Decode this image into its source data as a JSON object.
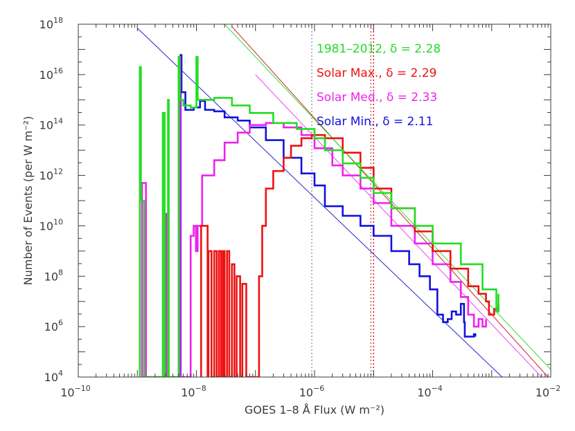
{
  "chart_data": {
    "type": "line",
    "xlabel": "GOES 1–8 Å Flux (W m⁻²)",
    "ylabel": "Number of Events (per W m⁻²)",
    "xscale": "log",
    "yscale": "log",
    "xlim": [
      1e-10,
      0.01
    ],
    "ylim": [
      10000.0,
      1e+18
    ],
    "x_ticks": [
      {
        "value": 1e-10,
        "base": "10",
        "exp": "−10"
      },
      {
        "value": 1e-08,
        "base": "10",
        "exp": "−8"
      },
      {
        "value": 1e-06,
        "base": "10",
        "exp": "−6"
      },
      {
        "value": 0.0001,
        "base": "10",
        "exp": "−4"
      },
      {
        "value": 0.01,
        "base": "10",
        "exp": "−2"
      }
    ],
    "y_ticks": [
      {
        "value": 10000.0,
        "base": "10",
        "exp": "4"
      },
      {
        "value": 1000000.0,
        "base": "10",
        "exp": "6"
      },
      {
        "value": 100000000.0,
        "base": "10",
        "exp": "8"
      },
      {
        "value": 10000000000.0,
        "base": "10",
        "exp": "10"
      },
      {
        "value": 1000000000000.0,
        "base": "10",
        "exp": "12"
      },
      {
        "value": 100000000000000.0,
        "base": "10",
        "exp": "14"
      },
      {
        "value": 1e+16,
        "base": "10",
        "exp": "16"
      },
      {
        "value": 1e+18,
        "base": "10",
        "exp": "18"
      }
    ],
    "legend_placement": "top-right",
    "legend": [
      {
        "text": "1981–2012, δ = 2.28",
        "color": "#22dd22"
      },
      {
        "text": "Solar Max., δ = 2.29",
        "color": "#ee1111"
      },
      {
        "text": "Solar Med., δ = 2.33",
        "color": "#ee22ee"
      },
      {
        "text": "Solar Min., δ = 2.11",
        "color": "#1111dd"
      }
    ],
    "vlines": [
      {
        "x": 9e-07,
        "color": "#9999aa"
      },
      {
        "x": 9e-06,
        "color": "#bb6666"
      },
      {
        "x": 1e-05,
        "color": "#ee1111"
      }
    ],
    "series": [
      {
        "color": "#1111dd",
        "points": [
          [
            5.4e-09,
            10000.0
          ],
          [
            5.4e-09,
            6e+16
          ],
          [
            5.6e-09,
            2000000000000000.0
          ],
          [
            6.5e-09,
            400000000000000.0
          ],
          [
            9e-09,
            500000000000000.0
          ],
          [
            1.15e-08,
            900000000000000.0
          ],
          [
            1.4e-08,
            400000000000000.0
          ],
          [
            2e-08,
            350000000000000.0
          ],
          [
            3e-08,
            200000000000000.0
          ],
          [
            5e-08,
            150000000000000.0
          ],
          [
            8e-08,
            80000000000000.0
          ],
          [
            1.5e-07,
            25000000000000.0
          ],
          [
            3e-07,
            5000000000000.0
          ],
          [
            6e-07,
            1200000000000.0
          ],
          [
            1e-06,
            400000000000.0
          ],
          [
            1.5e-06,
            60000000000.0
          ],
          [
            3e-06,
            25000000000.0
          ],
          [
            6e-06,
            10000000000.0
          ],
          [
            1e-05,
            4000000000.0
          ],
          [
            2e-05,
            1000000000.0
          ],
          [
            4e-05,
            300000000.0
          ],
          [
            6e-05,
            100000000.0
          ],
          [
            9e-05,
            30000000.0
          ],
          [
            0.00012,
            3000000.0
          ],
          [
            0.00015,
            1500000.0
          ],
          [
            0.00018,
            2000000.0
          ],
          [
            0.00021,
            4000000.0
          ],
          [
            0.00025,
            3000000.0
          ],
          [
            0.0003,
            8000000.0
          ],
          [
            0.00034,
            1500000.0
          ],
          [
            0.00035,
            400000.0
          ],
          [
            0.0005,
            500000.0
          ],
          [
            0.00053,
            400000.0
          ]
        ]
      },
      {
        "color": "#ee22ee",
        "points": [
          [
            1.2e-09,
            10000.0
          ],
          [
            1.2e-09,
            500000000000.0
          ],
          [
            1.4e-09,
            10000.0
          ],
          [
            3e-09,
            10000.0
          ],
          [
            3e-09,
            30000000000.0
          ],
          [
            3.2e-09,
            10000.0
          ],
          [
            5e-09,
            10000.0
          ],
          [
            5e-09,
            5e+16
          ],
          [
            5.3e-09,
            10000.0
          ],
          [
            7.5e-09,
            10000.0
          ],
          [
            8e-09,
            4000000000.0
          ],
          [
            9e-09,
            10000000000.0
          ],
          [
            9.8e-09,
            1000000000.0
          ],
          [
            1.05e-08,
            10000000000.0
          ],
          [
            1.2e-08,
            10000000000.0
          ],
          [
            1.25e-08,
            1000000000000.0
          ],
          [
            2e-08,
            4000000000000.0
          ],
          [
            3e-08,
            20000000000000.0
          ],
          [
            5e-08,
            50000000000000.0
          ],
          [
            8e-08,
            100000000000000.0
          ],
          [
            1.5e-07,
            120000000000000.0
          ],
          [
            3e-07,
            80000000000000.0
          ],
          [
            6e-07,
            40000000000000.0
          ],
          [
            1e-06,
            12000000000000.0
          ],
          [
            2e-06,
            2500000000000.0
          ],
          [
            3e-06,
            1000000000000.0
          ],
          [
            6e-06,
            300000000000.0
          ],
          [
            1e-05,
            80000000000.0
          ],
          [
            2e-05,
            10000000000.0
          ],
          [
            5e-05,
            2000000000.0
          ],
          [
            0.0001,
            300000000.0
          ],
          [
            0.0002,
            60000000.0
          ],
          [
            0.0003,
            15000000.0
          ],
          [
            0.0004,
            3000000.0
          ],
          [
            0.0005,
            1000000.0
          ],
          [
            0.0006,
            2000000.0
          ],
          [
            0.0007,
            1000000.0
          ],
          [
            0.0008,
            2000000.0
          ]
        ]
      },
      {
        "color": "#ee1111",
        "points": [
          [
            1.2e-08,
            10000.0
          ],
          [
            1.2e-08,
            10000000000.0
          ],
          [
            1.5e-08,
            10000000000.0
          ],
          [
            1.55e-08,
            10000.0
          ],
          [
            1.6e-08,
            1000000000.0
          ],
          [
            1.8e-08,
            10000.0
          ],
          [
            2e-08,
            1000000000.0
          ],
          [
            2.2e-08,
            10000.0
          ],
          [
            2.4e-08,
            1000000000.0
          ],
          [
            2.6e-08,
            10000.0
          ],
          [
            2.8e-08,
            1000000000.0
          ],
          [
            3e-08,
            10000.0
          ],
          [
            3.3e-08,
            1000000000.0
          ],
          [
            3.6e-08,
            10000.0
          ],
          [
            4e-08,
            300000000.0
          ],
          [
            4.4e-08,
            10000.0
          ],
          [
            4.8e-08,
            100000000.0
          ],
          [
            5.5e-08,
            10000.0
          ],
          [
            6e-08,
            50000000.0
          ],
          [
            7e-08,
            10000.0
          ],
          [
            1.1e-07,
            10000.0
          ],
          [
            1.15e-07,
            100000000.0
          ],
          [
            1.3e-07,
            10000000000.0
          ],
          [
            1.5e-07,
            300000000000.0
          ],
          [
            2e-07,
            1500000000000.0
          ],
          [
            3e-07,
            5000000000000.0
          ],
          [
            4e-07,
            15000000000000.0
          ],
          [
            6e-07,
            30000000000000.0
          ],
          [
            9e-07,
            40000000000000.0
          ],
          [
            1.5e-06,
            30000000000000.0
          ],
          [
            3e-06,
            8000000000000.0
          ],
          [
            6e-06,
            2000000000000.0
          ],
          [
            1e-05,
            300000000000.0
          ],
          [
            2e-05,
            50000000000.0
          ],
          [
            5e-05,
            6000000000.0
          ],
          [
            0.0001,
            1000000000.0
          ],
          [
            0.0002,
            200000000.0
          ],
          [
            0.0004,
            40000000.0
          ],
          [
            0.0006,
            20000000.0
          ],
          [
            0.0008,
            10000000.0
          ],
          [
            0.0009,
            3000000.0
          ],
          [
            0.0011,
            5000000.0
          ],
          [
            0.0013,
            8000000.0
          ]
        ]
      },
      {
        "color": "#22dd22",
        "points": [
          [
            1.1e-09,
            10000.0
          ],
          [
            1.1e-09,
            2e+16
          ],
          [
            1.15e-09,
            100000000000.0
          ],
          [
            1.3e-09,
            10000.0
          ],
          [
            2.7e-09,
            10000.0
          ],
          [
            2.7e-09,
            300000000000000.0
          ],
          [
            2.9e-09,
            10000.0
          ],
          [
            3.3e-09,
            10000.0
          ],
          [
            3.3e-09,
            1000000000000000.0
          ],
          [
            3.4e-09,
            10000.0
          ],
          [
            5e-09,
            10000.0
          ],
          [
            5e-09,
            5e+16
          ],
          [
            5.2e-09,
            1000000000000000.0
          ],
          [
            6e-09,
            600000000000000.0
          ],
          [
            8e-09,
            500000000000000.0
          ],
          [
            1e-08,
            5e+16
          ],
          [
            1.05e-08,
            1000000000000000.0
          ],
          [
            2e-08,
            1200000000000000.0
          ],
          [
            4e-08,
            600000000000000.0
          ],
          [
            8e-08,
            300000000000000.0
          ],
          [
            2e-07,
            120000000000000.0
          ],
          [
            5e-07,
            70000000000000.0
          ],
          [
            1e-06,
            30000000000000.0
          ],
          [
            1.5e-06,
            10000000000000.0
          ],
          [
            3e-06,
            3000000000000.0
          ],
          [
            6e-06,
            800000000000.0
          ],
          [
            1e-05,
            200000000000.0
          ],
          [
            2e-05,
            50000000000.0
          ],
          [
            5e-05,
            10000000000.0
          ],
          [
            0.0001,
            2000000000.0
          ],
          [
            0.0003,
            300000000.0
          ],
          [
            0.0007,
            30000000.0
          ],
          [
            0.0012,
            4000000.0
          ],
          [
            0.0013,
            20000000.0
          ]
        ]
      }
    ],
    "fits": [
      {
        "color": "#2222cc",
        "from": [
          1e-09,
          7e+17
        ],
        "to": [
          0.0015,
          10000.0
        ]
      },
      {
        "color": "#ee44ee",
        "from": [
          1e-07,
          1e+16
        ],
        "to": [
          0.007,
          10000.0
        ]
      },
      {
        "color": "#cc2222",
        "from": [
          4e-08,
          8e+17
        ],
        "to": [
          0.009,
          10000.0
        ]
      },
      {
        "color": "#33dd33",
        "from": [
          3e-08,
          1e+18
        ],
        "to": [
          0.01,
          20000.0
        ]
      }
    ]
  }
}
